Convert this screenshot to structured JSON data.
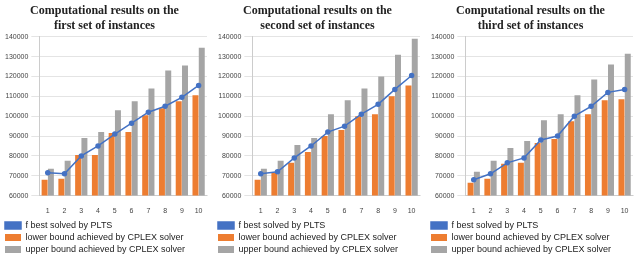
{
  "chart_data": [
    {
      "type": "bar",
      "title": [
        "Computational results on the",
        "first set of instances"
      ],
      "categories": [
        "1",
        "2",
        "3",
        "4",
        "5",
        "6",
        "7",
        "8",
        "9",
        "10"
      ],
      "series": [
        {
          "name": "lower bound achieved by CPLEX solver",
          "type": "bar",
          "color": "#ed7d31",
          "values": [
            68000,
            68500,
            80500,
            80500,
            91500,
            92000,
            100500,
            104000,
            107500,
            110500
          ]
        },
        {
          "name": "upper bound achieved by CPLEX solver",
          "type": "bar",
          "color": "#a5a5a5",
          "values": [
            73500,
            77500,
            89000,
            92000,
            103000,
            107500,
            114000,
            123000,
            125500,
            134500
          ]
        },
        {
          "name": "f best solved by PLTS",
          "type": "line",
          "color": "#4472c4",
          "marker": "circle",
          "values": [
            71500,
            71000,
            80000,
            85000,
            91000,
            96500,
            102000,
            105000,
            109500,
            115500
          ]
        }
      ],
      "ylim": [
        60000,
        140000
      ],
      "yticks": [
        60000,
        70000,
        80000,
        90000,
        100000,
        110000,
        120000,
        130000,
        140000
      ],
      "grid": true,
      "legend": "bottom"
    },
    {
      "type": "bar",
      "title": [
        "Computational results on the",
        "second set of instances"
      ],
      "categories": [
        "1",
        "2",
        "3",
        "4",
        "5",
        "6",
        "7",
        "8",
        "9",
        "10"
      ],
      "series": [
        {
          "name": "lower bound achieved by CPLEX solver",
          "type": "bar",
          "color": "#ed7d31",
          "values": [
            68000,
            71500,
            76500,
            82000,
            90000,
            93000,
            100000,
            101000,
            110000,
            115500
          ]
        },
        {
          "name": "upper bound achieved by CPLEX solver",
          "type": "bar",
          "color": "#a5a5a5",
          "values": [
            73500,
            77500,
            85500,
            89000,
            101000,
            108000,
            114000,
            120000,
            131000,
            139000
          ]
        },
        {
          "name": "f best solved by PLTS",
          "type": "line",
          "color": "#4472c4",
          "marker": "circle",
          "values": [
            71000,
            72000,
            79000,
            85000,
            92000,
            95000,
            101000,
            106000,
            113500,
            120500
          ]
        }
      ],
      "ylim": [
        60000,
        140000
      ],
      "yticks": [
        60000,
        70000,
        80000,
        90000,
        100000,
        110000,
        120000,
        130000,
        140000
      ],
      "grid": true,
      "legend": "bottom"
    },
    {
      "type": "bar",
      "title": [
        "Computational results on the",
        "third set of instances"
      ],
      "categories": [
        "1",
        "2",
        "3",
        "4",
        "5",
        "6",
        "7",
        "8",
        "9",
        "10"
      ],
      "series": [
        {
          "name": "lower bound achieved by CPLEX solver",
          "type": "bar",
          "color": "#ed7d31",
          "values": [
            66500,
            68500,
            76000,
            76500,
            86500,
            88500,
            97500,
            101000,
            108000,
            108500
          ]
        },
        {
          "name": "upper bound achieved by CPLEX solver",
          "type": "bar",
          "color": "#a5a5a5",
          "values": [
            72000,
            77500,
            84000,
            87500,
            98000,
            101000,
            110500,
            118500,
            126000,
            131500
          ]
        },
        {
          "name": "f best solved by PLTS",
          "type": "line",
          "color": "#4472c4",
          "marker": "circle",
          "values": [
            68000,
            71000,
            76500,
            79000,
            88000,
            90000,
            100000,
            105000,
            112000,
            113500
          ]
        }
      ],
      "ylim": [
        60000,
        140000
      ],
      "yticks": [
        60000,
        70000,
        80000,
        90000,
        100000,
        110000,
        120000,
        130000,
        140000
      ],
      "grid": true,
      "legend": "bottom"
    }
  ]
}
